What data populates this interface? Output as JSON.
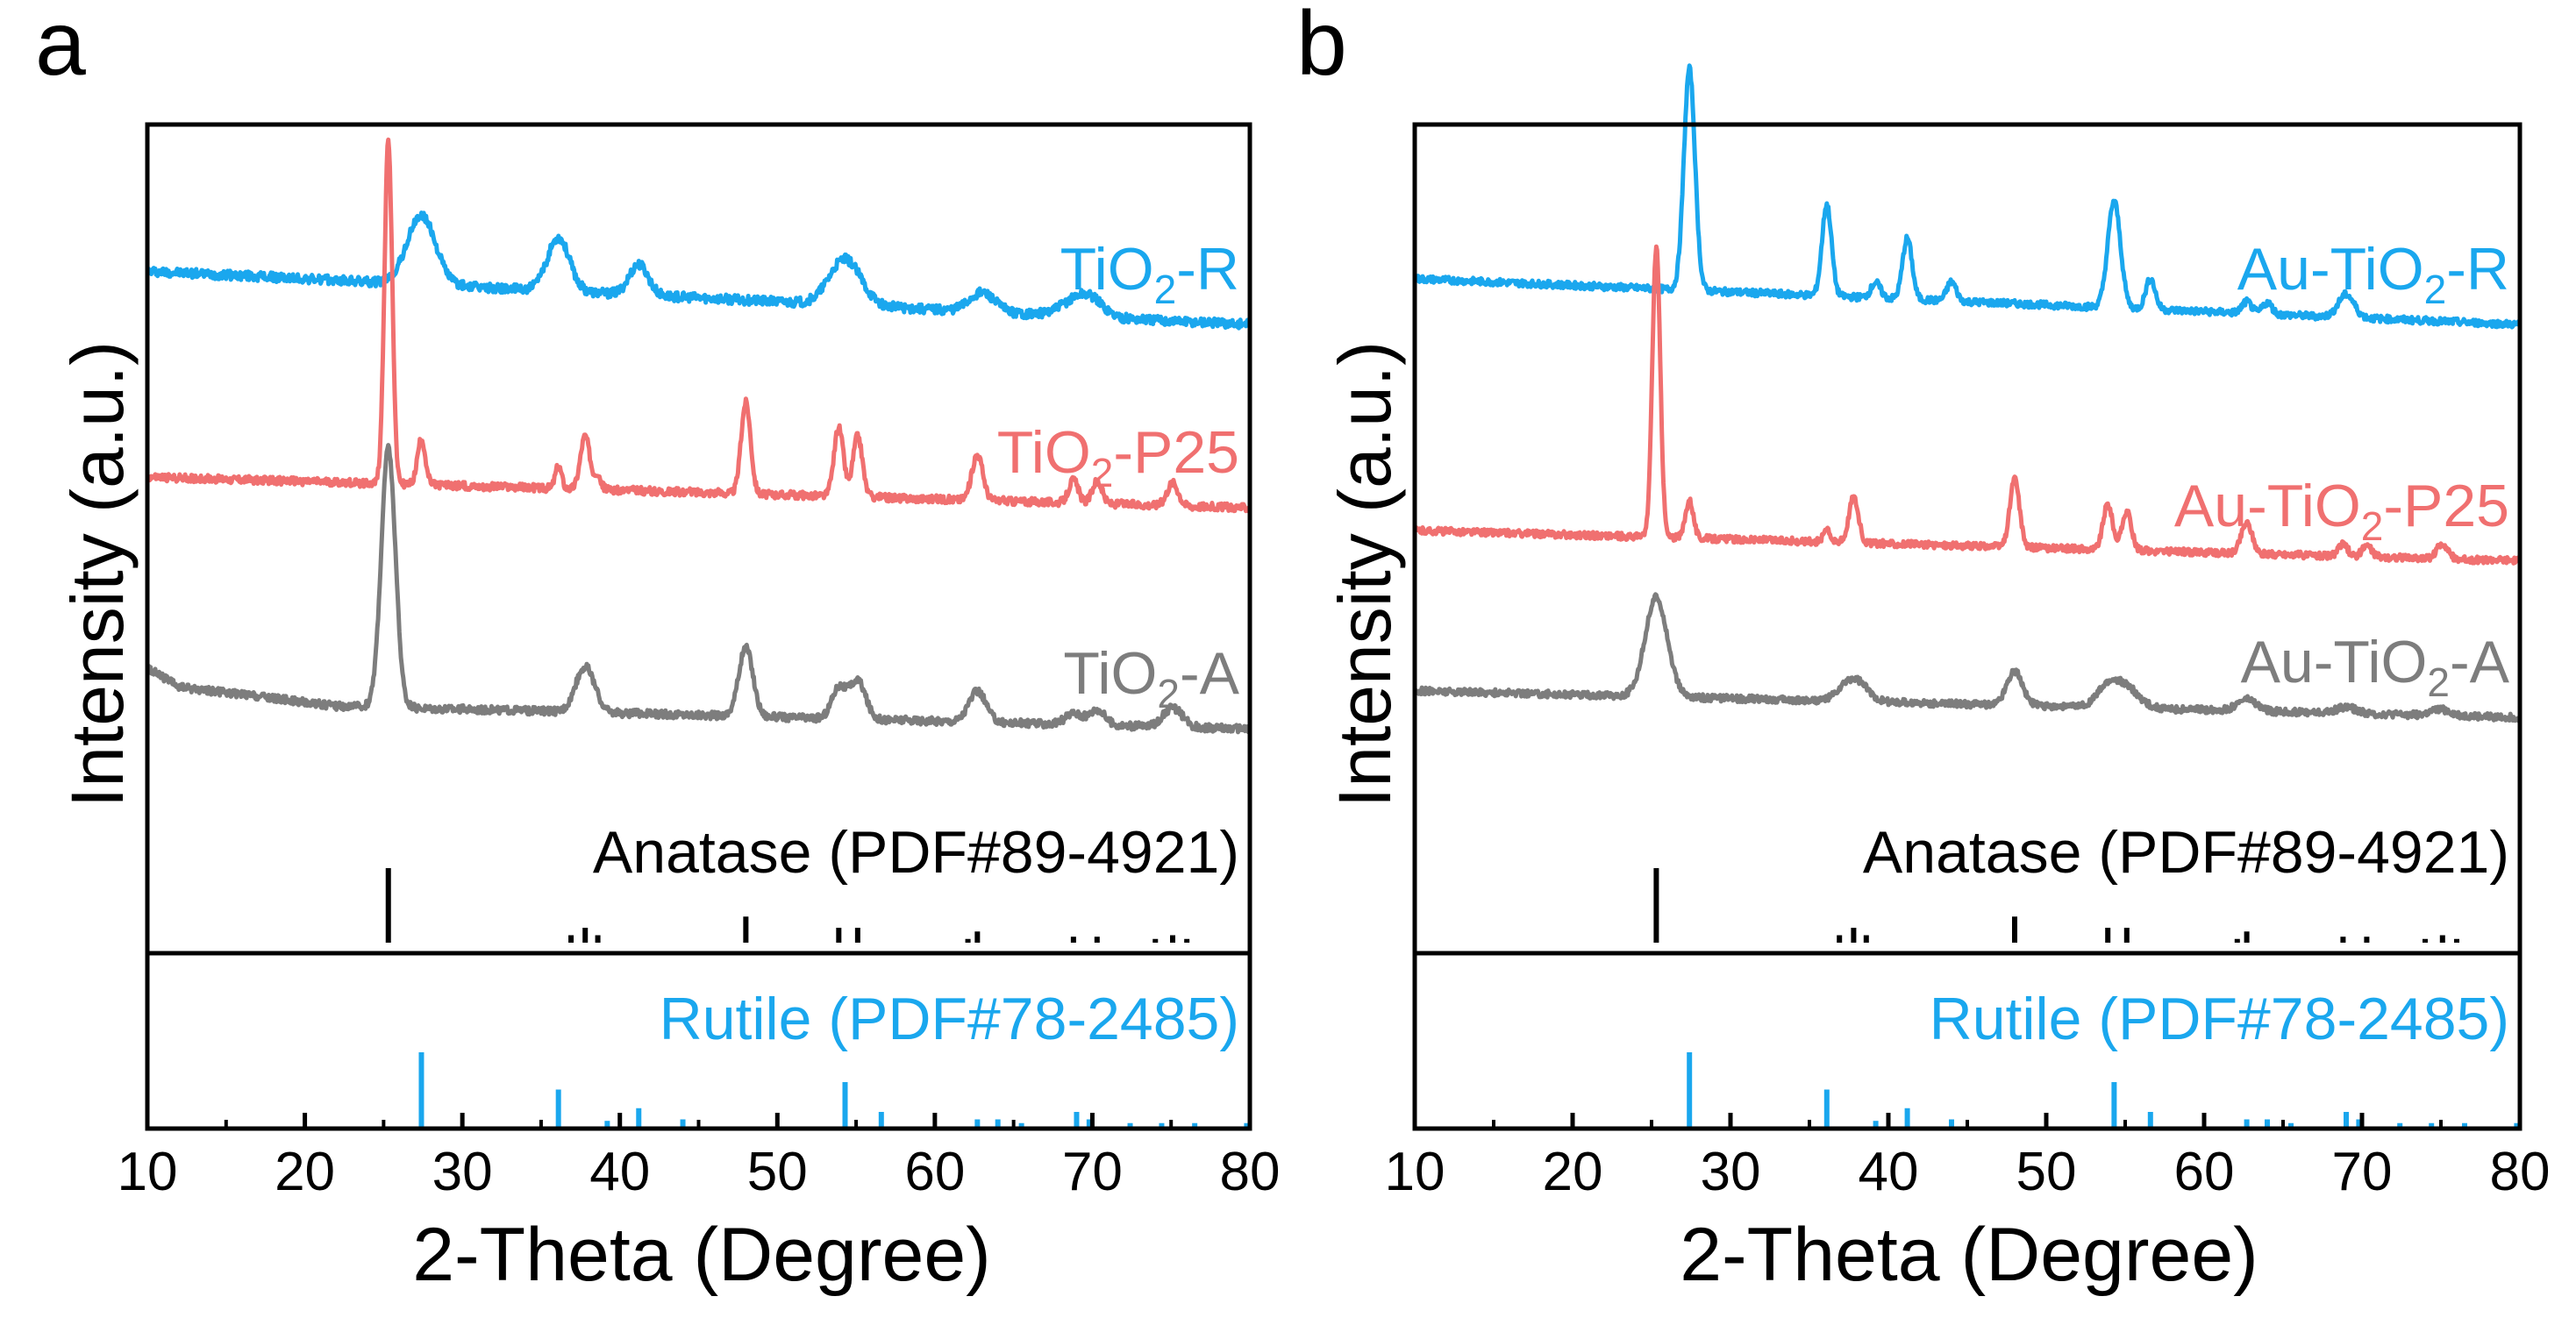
{
  "figure": {
    "colors": {
      "blue": "#1aa7ee",
      "red": "#f07070",
      "gray": "#7d7d7d",
      "black": "#000000"
    }
  },
  "chart_data": [
    {
      "type": "line",
      "panel_label": "a",
      "xlabel": "2-Theta (Degree)",
      "ylabel": "Intensity (a.u.)",
      "xlim": [
        10,
        80
      ],
      "x_ticks": [
        10,
        20,
        30,
        40,
        50,
        60,
        70,
        80
      ],
      "series": [
        {
          "name": "TiO2-R",
          "label_main": "TiO",
          "label_sub": "2",
          "label_rest": "-R",
          "color": "#1aa7ee",
          "baseline": [
            [
              10,
              84
            ],
            [
              80,
              77
            ]
          ],
          "noise": 0.6,
          "peaks": [
            [
              27.4,
              9,
              0.9
            ],
            [
              36.1,
              7,
              0.7
            ],
            [
              41.2,
              4,
              0.6
            ],
            [
              54.3,
              6,
              1.0
            ],
            [
              63,
              2.5,
              0.8
            ],
            [
              69,
              2,
              1
            ],
            [
              70,
              1.5,
              0.8
            ]
          ]
        },
        {
          "name": "TiO2-P25",
          "label_main": "TiO",
          "label_sub": "2",
          "label_rest": "-P25",
          "color": "#f07070",
          "baseline": [
            [
              10,
              57
            ],
            [
              80,
              53
            ]
          ],
          "noise": 0.5,
          "peaks": [
            [
              25.3,
              45,
              0.25
            ],
            [
              27.4,
              6,
              0.25
            ],
            [
              36.1,
              3,
              0.2
            ],
            [
              37.8,
              7,
              0.3
            ],
            [
              38.6,
              2,
              0.2
            ],
            [
              48.0,
              12,
              0.3
            ],
            [
              53.9,
              9,
              0.3
            ],
            [
              55.1,
              8,
              0.3
            ],
            [
              62.7,
              6,
              0.35
            ],
            [
              68.8,
              3,
              0.3
            ],
            [
              70.3,
              3,
              0.3
            ],
            [
              75.1,
              3,
              0.35
            ]
          ]
        },
        {
          "name": "TiO2-A",
          "label_main": "TiO",
          "label_sub": "2",
          "label_rest": "-A",
          "color": "#7d7d7d",
          "baseline": [
            [
              10,
              32
            ],
            [
              12,
              29.5
            ],
            [
              22,
              27
            ],
            [
              80,
              24
            ]
          ],
          "noise": 0.5,
          "peaks": [
            [
              25.3,
              34,
              0.45
            ],
            [
              37.8,
              6,
              0.6
            ],
            [
              48.0,
              9,
              0.45
            ],
            [
              53.9,
              4,
              0.45
            ],
            [
              55.1,
              5,
              0.5
            ],
            [
              62.7,
              4,
              0.55
            ],
            [
              68.8,
              1.5,
              0.5
            ],
            [
              70.3,
              2,
              0.5
            ],
            [
              75.1,
              2.5,
              0.6
            ]
          ]
        }
      ],
      "reference_panels": [
        {
          "name": "Anatase (PDF#89-4921)",
          "color": "#000000",
          "region": "upper",
          "lines": [
            [
              25.3,
              100
            ],
            [
              36.9,
              10
            ],
            [
              37.8,
              20
            ],
            [
              38.6,
              10
            ],
            [
              48.0,
              35
            ],
            [
              53.9,
              20
            ],
            [
              55.1,
              20
            ],
            [
              62.1,
              5
            ],
            [
              62.7,
              15
            ],
            [
              68.8,
              8
            ],
            [
              70.3,
              8
            ],
            [
              74.0,
              5
            ],
            [
              75.1,
              10
            ],
            [
              76.0,
              5
            ]
          ]
        },
        {
          "name": "Rutile (PDF#78-2485)",
          "color": "#1aa7ee",
          "region": "lower",
          "lines": [
            [
              27.4,
              100
            ],
            [
              36.1,
              50
            ],
            [
              39.2,
              8
            ],
            [
              41.2,
              25
            ],
            [
              44.0,
              10
            ],
            [
              54.3,
              60
            ],
            [
              56.6,
              20
            ],
            [
              62.7,
              10
            ],
            [
              64.0,
              10
            ],
            [
              65.5,
              5
            ],
            [
              69.0,
              20
            ],
            [
              69.8,
              10
            ],
            [
              72.4,
              5
            ],
            [
              74.4,
              5
            ],
            [
              76.5,
              5
            ],
            [
              79.8,
              5
            ]
          ]
        }
      ]
    },
    {
      "type": "line",
      "panel_label": "b",
      "xlabel": "2-Theta (Degree)",
      "ylabel": "Intensity (a.u.)",
      "xlim": [
        10,
        80
      ],
      "x_ticks": [
        10,
        20,
        30,
        40,
        50,
        60,
        70,
        80
      ],
      "series": [
        {
          "name": "Au-TiO2-R",
          "label_main": "Au-TiO",
          "label_sub": "2",
          "label_rest": "-R",
          "color": "#1aa7ee",
          "baseline": [
            [
              10,
              83
            ],
            [
              80,
              77
            ]
          ],
          "noise": 0.45,
          "peaks": [
            [
              27.4,
              29,
              0.35
            ],
            [
              36.1,
              12,
              0.3
            ],
            [
              39.2,
              2,
              0.3
            ],
            [
              41.2,
              8,
              0.3
            ],
            [
              44.0,
              2.5,
              0.3
            ],
            [
              54.3,
              14,
              0.4
            ],
            [
              56.6,
              4,
              0.3
            ],
            [
              62.7,
              1.5,
              0.3
            ],
            [
              64.0,
              1.5,
              0.3
            ],
            [
              69.0,
              3,
              0.5
            ]
          ]
        },
        {
          "name": "Au-TiO2-P25",
          "label_main": "Au-TiO",
          "label_sub": "2",
          "label_rest": "-P25",
          "color": "#f07070",
          "baseline": [
            [
              10,
              50
            ],
            [
              80,
              46
            ]
          ],
          "noise": 0.45,
          "peaks": [
            [
              25.3,
              38,
              0.25
            ],
            [
              27.4,
              5,
              0.25
            ],
            [
              36.1,
              2,
              0.2
            ],
            [
              37.8,
              6,
              0.3
            ],
            [
              48.0,
              9,
              0.3
            ],
            [
              53.9,
              6,
              0.3
            ],
            [
              55.1,
              5,
              0.3
            ],
            [
              62.7,
              4,
              0.35
            ],
            [
              68.8,
              1.5,
              0.3
            ],
            [
              70.3,
              1.5,
              0.3
            ],
            [
              75.1,
              2,
              0.35
            ]
          ]
        },
        {
          "name": "Au-TiO2-A",
          "label_main": "Au-TiO",
          "label_sub": "2",
          "label_rest": "-A",
          "color": "#7d7d7d",
          "baseline": [
            [
              10,
              29
            ],
            [
              80,
              25.5
            ]
          ],
          "noise": 0.45,
          "peaks": [
            [
              25.3,
              13,
              0.7
            ],
            [
              37.8,
              3,
              0.8
            ],
            [
              48.0,
              4.5,
              0.5
            ],
            [
              53.9,
              2.5,
              0.7
            ],
            [
              55.1,
              2.5,
              0.8
            ],
            [
              62.7,
              1.5,
              0.6
            ],
            [
              69.0,
              0.8,
              0.6
            ],
            [
              75.0,
              0.8,
              0.6
            ]
          ]
        }
      ],
      "reference_panels": [
        {
          "name": "Anatase (PDF#89-4921)",
          "color": "#000000",
          "region": "upper",
          "lines": [
            [
              25.3,
              100
            ],
            [
              36.9,
              10
            ],
            [
              37.8,
              20
            ],
            [
              38.6,
              10
            ],
            [
              48.0,
              35
            ],
            [
              53.9,
              20
            ],
            [
              55.1,
              20
            ],
            [
              62.1,
              5
            ],
            [
              62.7,
              15
            ],
            [
              68.8,
              8
            ],
            [
              70.3,
              8
            ],
            [
              74.0,
              5
            ],
            [
              75.1,
              10
            ],
            [
              76.0,
              5
            ]
          ]
        },
        {
          "name": "Rutile (PDF#78-2485)",
          "color": "#1aa7ee",
          "region": "lower",
          "lines": [
            [
              27.4,
              100
            ],
            [
              36.1,
              50
            ],
            [
              39.2,
              8
            ],
            [
              41.2,
              25
            ],
            [
              44.0,
              10
            ],
            [
              54.3,
              60
            ],
            [
              56.6,
              20
            ],
            [
              62.7,
              10
            ],
            [
              64.0,
              10
            ],
            [
              65.5,
              5
            ],
            [
              69.0,
              20
            ],
            [
              69.8,
              10
            ],
            [
              72.4,
              5
            ],
            [
              74.4,
              5
            ],
            [
              76.5,
              5
            ],
            [
              79.8,
              5
            ]
          ]
        }
      ]
    }
  ]
}
